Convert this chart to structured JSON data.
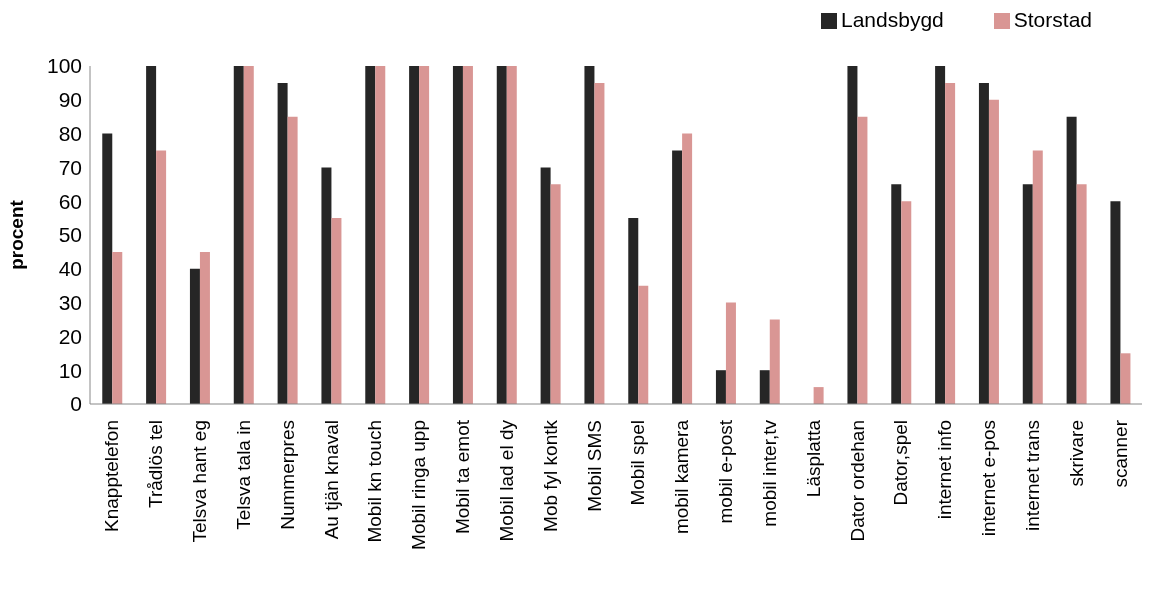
{
  "chart_data": {
    "type": "bar",
    "ylabel": "procent",
    "categories": [
      "Knapptelefon",
      "Trådlös tel",
      "Telsva hant eg",
      "Telsva tala in",
      "Nummerpres",
      "Au tjän knaval",
      "Mobil kn touch",
      "Mobil ringa upp",
      "Mobil ta emot",
      "Mobil lad el dy",
      "Mob fyl kontk",
      "Mobil SMS",
      "Mobil spel",
      "mobil kamera",
      "mobil e-post",
      "mobil inter,tv",
      "Läsplatta",
      "Dator ordehan",
      "Dator,spel",
      "internet info",
      "internet e-pos",
      "internet trans",
      "skrivare",
      "scanner"
    ],
    "series": [
      {
        "name": "Landsbygd",
        "color": "#262626",
        "values": [
          80,
          100,
          40,
          100,
          95,
          70,
          100,
          100,
          100,
          100,
          70,
          100,
          55,
          75,
          10,
          10,
          0,
          100,
          65,
          100,
          95,
          65,
          85,
          60
        ]
      },
      {
        "name": "Storstad",
        "color": "#d99694",
        "values": [
          45,
          75,
          45,
          100,
          85,
          55,
          100,
          100,
          100,
          100,
          65,
          95,
          35,
          80,
          30,
          25,
          5,
          85,
          60,
          95,
          90,
          75,
          65,
          15
        ]
      }
    ],
    "ylim": [
      0,
      100
    ],
    "yticks": [
      0,
      10,
      20,
      30,
      40,
      50,
      60,
      70,
      80,
      90,
      100
    ],
    "grid": false,
    "legend": "top right"
  }
}
